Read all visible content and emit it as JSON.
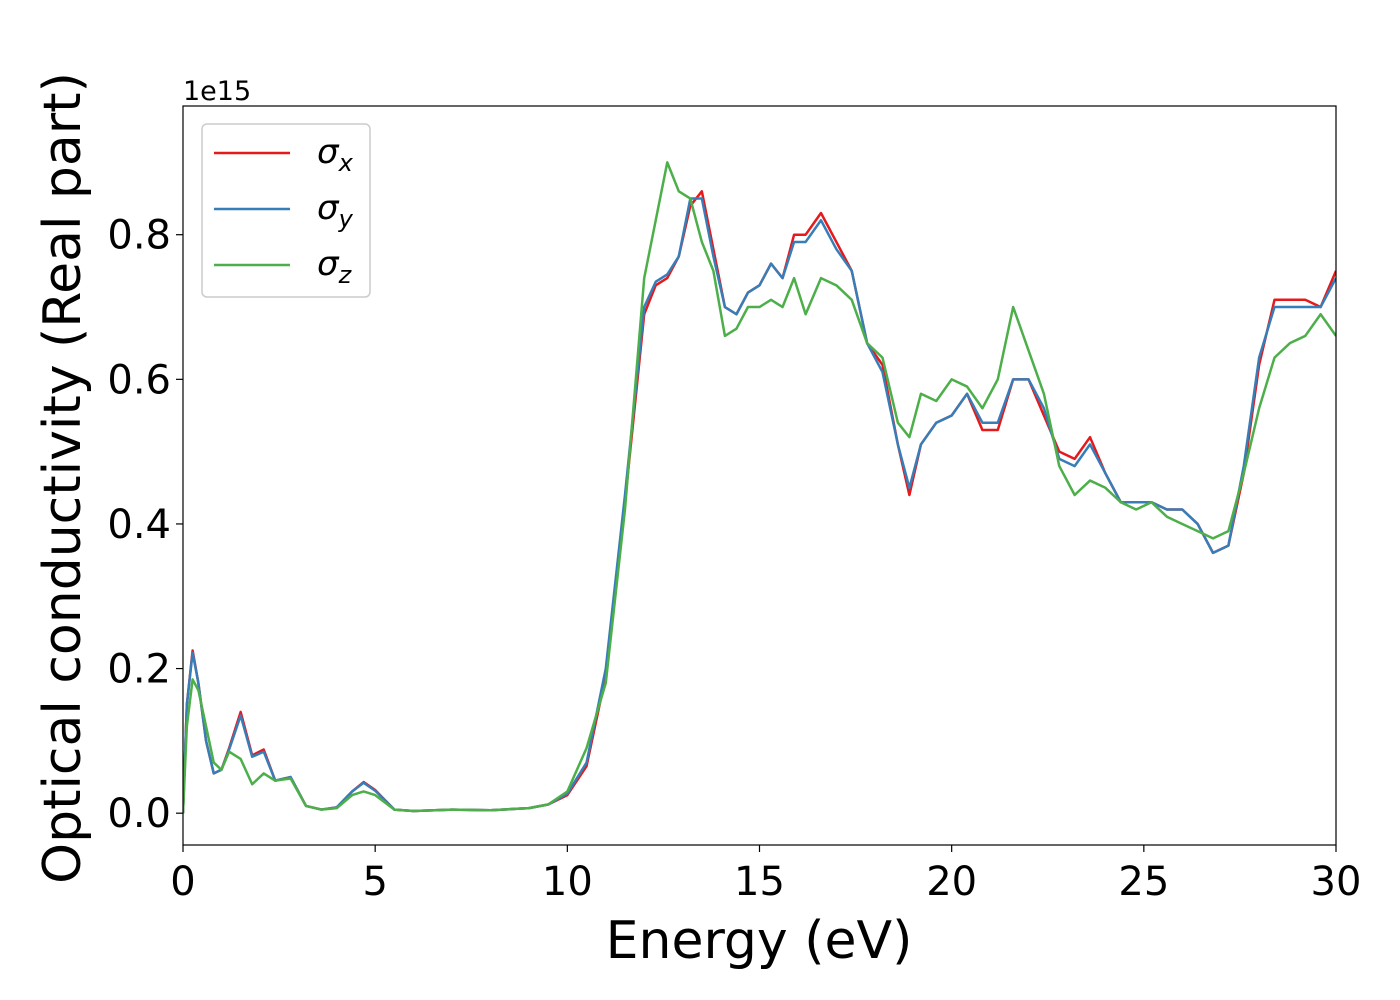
{
  "chart_data": {
    "type": "line",
    "x_label": "Energy (eV)",
    "y_label": "Optical conductivity (Real part)",
    "y_offset": "1e15",
    "x": [
      0,
      0.1,
      0.25,
      0.4,
      0.6,
      0.8,
      1.0,
      1.2,
      1.5,
      1.8,
      2.1,
      2.4,
      2.8,
      3.2,
      3.6,
      4.0,
      4.4,
      4.7,
      5.0,
      5.5,
      6,
      7,
      8,
      9,
      9.5,
      10,
      10.5,
      11,
      11.5,
      12,
      12.3,
      12.6,
      12.9,
      13.2,
      13.5,
      13.8,
      14.1,
      14.4,
      14.7,
      15,
      15.3,
      15.6,
      15.9,
      16.2,
      16.6,
      17,
      17.4,
      17.8,
      18.2,
      18.6,
      18.9,
      19.2,
      19.6,
      20,
      20.4,
      20.8,
      21.2,
      21.6,
      22,
      22.4,
      22.8,
      23.2,
      23.6,
      24,
      24.4,
      24.8,
      25.2,
      25.6,
      26,
      26.4,
      26.8,
      27.2,
      27.6,
      28,
      28.4,
      28.8,
      29.2,
      29.6,
      30
    ],
    "series": [
      {
        "name": "σx",
        "color": "#e41a1c",
        "values": [
          0,
          0.15,
          0.225,
          0.18,
          0.1,
          0.055,
          0.06,
          0.09,
          0.14,
          0.08,
          0.088,
          0.045,
          0.05,
          0.01,
          0.005,
          0.008,
          0.03,
          0.043,
          0.032,
          0.005,
          0.003,
          0.005,
          0.004,
          0.007,
          0.012,
          0.025,
          0.065,
          0.19,
          0.43,
          0.69,
          0.73,
          0.74,
          0.77,
          0.84,
          0.86,
          0.78,
          0.7,
          0.69,
          0.72,
          0.73,
          0.76,
          0.74,
          0.8,
          0.8,
          0.83,
          0.79,
          0.75,
          0.65,
          0.62,
          0.51,
          0.44,
          0.51,
          0.54,
          0.55,
          0.58,
          0.53,
          0.53,
          0.6,
          0.6,
          0.55,
          0.5,
          0.49,
          0.52,
          0.47,
          0.43,
          0.43,
          0.43,
          0.42,
          0.42,
          0.4,
          0.36,
          0.37,
          0.47,
          0.62,
          0.71,
          0.71,
          0.71,
          0.7,
          0.75
        ]
      },
      {
        "name": "σy",
        "color": "#377eb8",
        "values": [
          0,
          0.15,
          0.222,
          0.18,
          0.1,
          0.055,
          0.06,
          0.088,
          0.135,
          0.078,
          0.085,
          0.045,
          0.05,
          0.01,
          0.005,
          0.008,
          0.03,
          0.042,
          0.031,
          0.005,
          0.003,
          0.005,
          0.004,
          0.007,
          0.012,
          0.027,
          0.07,
          0.2,
          0.44,
          0.7,
          0.735,
          0.745,
          0.77,
          0.85,
          0.85,
          0.77,
          0.7,
          0.69,
          0.72,
          0.73,
          0.76,
          0.74,
          0.79,
          0.79,
          0.82,
          0.78,
          0.75,
          0.65,
          0.61,
          0.51,
          0.45,
          0.51,
          0.54,
          0.55,
          0.58,
          0.54,
          0.54,
          0.6,
          0.6,
          0.56,
          0.49,
          0.48,
          0.51,
          0.47,
          0.43,
          0.43,
          0.43,
          0.42,
          0.42,
          0.4,
          0.36,
          0.37,
          0.48,
          0.63,
          0.7,
          0.7,
          0.7,
          0.7,
          0.74
        ]
      },
      {
        "name": "σz",
        "color": "#4daf4a",
        "values": [
          0,
          0.12,
          0.185,
          0.17,
          0.12,
          0.07,
          0.06,
          0.085,
          0.075,
          0.04,
          0.055,
          0.045,
          0.048,
          0.01,
          0.005,
          0.007,
          0.025,
          0.03,
          0.025,
          0.005,
          0.003,
          0.005,
          0.004,
          0.007,
          0.012,
          0.03,
          0.09,
          0.18,
          0.42,
          0.74,
          0.82,
          0.9,
          0.86,
          0.85,
          0.79,
          0.75,
          0.66,
          0.67,
          0.7,
          0.7,
          0.71,
          0.7,
          0.74,
          0.69,
          0.74,
          0.73,
          0.71,
          0.65,
          0.63,
          0.54,
          0.52,
          0.58,
          0.57,
          0.6,
          0.59,
          0.56,
          0.6,
          0.7,
          0.64,
          0.58,
          0.48,
          0.44,
          0.46,
          0.45,
          0.43,
          0.42,
          0.43,
          0.41,
          0.4,
          0.39,
          0.38,
          0.39,
          0.47,
          0.56,
          0.63,
          0.65,
          0.66,
          0.69,
          0.66
        ]
      }
    ],
    "xlim": [
      0,
      30
    ],
    "xticks": [
      0,
      5,
      10,
      15,
      20,
      25,
      30
    ],
    "ylim": [
      -0.044,
      0.978
    ],
    "yticks": [
      {
        "value": 0,
        "label": "0.0"
      },
      {
        "value": 0.2,
        "label": "0.2"
      },
      {
        "value": 0.4,
        "label": "0.4"
      },
      {
        "value": 0.6,
        "label": "0.6"
      },
      {
        "value": 0.8,
        "label": "0.8"
      }
    ],
    "legend": "upper left",
    "grid": false
  }
}
